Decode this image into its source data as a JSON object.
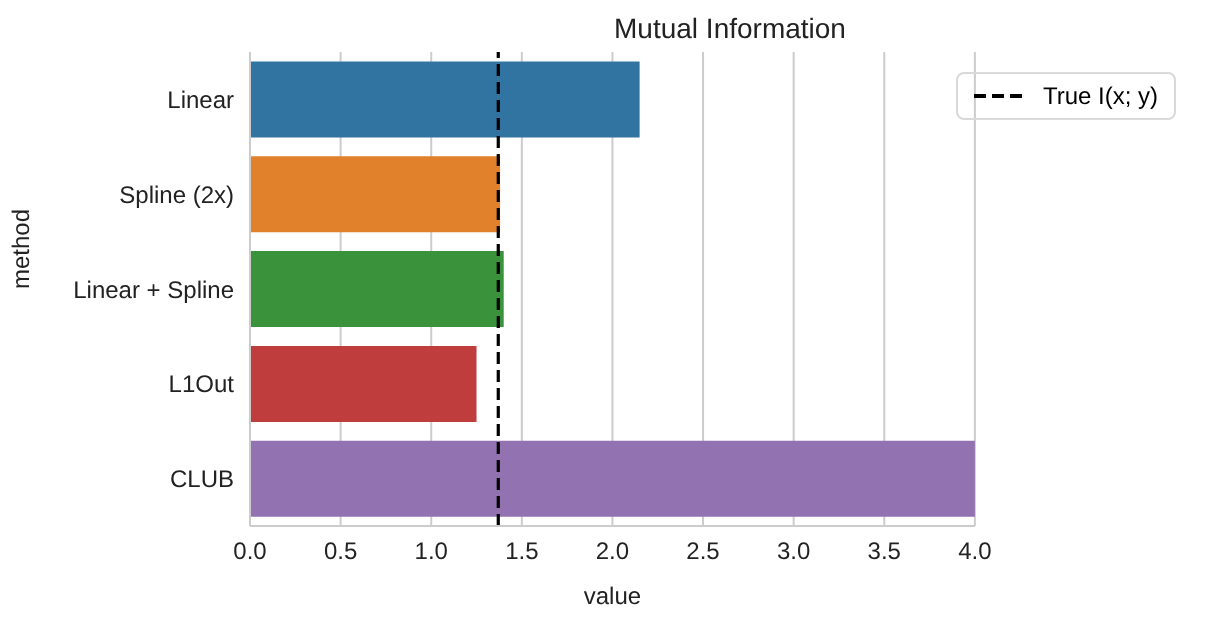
{
  "chart_data": {
    "type": "bar",
    "orientation": "horizontal",
    "title": "Mutual Information",
    "xlabel": "value",
    "ylabel": "method",
    "categories": [
      "Linear",
      "Spline (2x)",
      "Linear + Spline",
      "L1Out",
      "CLUB"
    ],
    "values": [
      2.15,
      1.38,
      1.4,
      1.25,
      4.0
    ],
    "colors": [
      "#3274a1",
      "#e1812c",
      "#3a923a",
      "#c03d3e",
      "#9372b2"
    ],
    "xlim": [
      0,
      4
    ],
    "xticks": [
      {
        "value": 0,
        "label": "0.0"
      },
      {
        "value": 0.5,
        "label": "0.5"
      },
      {
        "value": 1,
        "label": "1.0"
      },
      {
        "value": 1.5,
        "label": "1.5"
      },
      {
        "value": 2,
        "label": "2.0"
      },
      {
        "value": 2.5,
        "label": "2.5"
      },
      {
        "value": 3,
        "label": "3.0"
      },
      {
        "value": 3.5,
        "label": "3.5"
      },
      {
        "value": 4,
        "label": "4.0"
      }
    ],
    "ref_lines": [
      {
        "axis": "x",
        "value": 1.37,
        "label": "True I(x; y)",
        "color": "#000000",
        "line_style": "dashed"
      }
    ],
    "grid": "x",
    "legend": "top right"
  }
}
